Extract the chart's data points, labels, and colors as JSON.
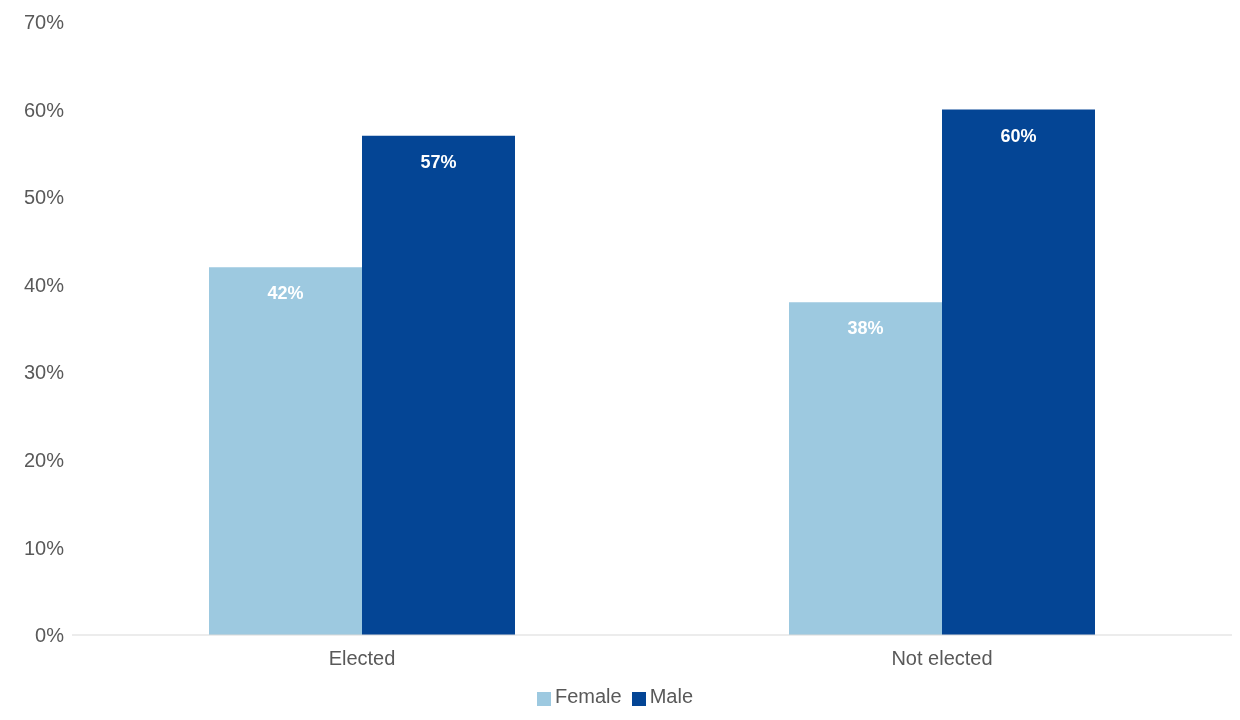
{
  "chart_data": {
    "type": "bar",
    "categories": [
      "Elected",
      "Not elected"
    ],
    "series": [
      {
        "name": "Female",
        "color": "#9dc9e0",
        "values": [
          42,
          38
        ],
        "value_labels": [
          "42%",
          "38%"
        ]
      },
      {
        "name": "Male",
        "color": "#044595",
        "values": [
          57,
          60
        ],
        "value_labels": [
          "57%",
          "60%"
        ]
      }
    ],
    "ylim": [
      0,
      70
    ],
    "yticks": [
      {
        "value": 0,
        "label": "0%"
      },
      {
        "value": 10,
        "label": "10%"
      },
      {
        "value": 20,
        "label": "20%"
      },
      {
        "value": 30,
        "label": "30%"
      },
      {
        "value": 40,
        "label": "40%"
      },
      {
        "value": 50,
        "label": "50%"
      },
      {
        "value": 60,
        "label": "60%"
      },
      {
        "value": 70,
        "label": "70%"
      }
    ],
    "grid": false,
    "legend": "bottom"
  }
}
